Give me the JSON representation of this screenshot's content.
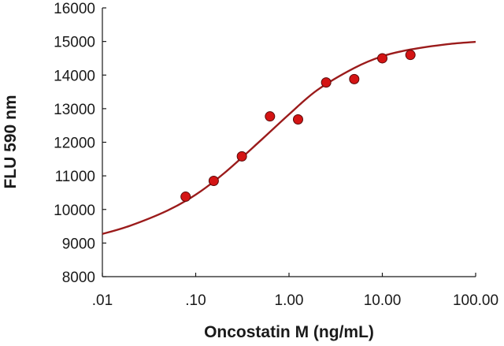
{
  "chart_data": {
    "type": "scatter",
    "xlabel": "Oncostatin M (ng/mL)",
    "ylabel": "FLU 590 nm",
    "x_scale": "log",
    "xlim": [
      0.01,
      100
    ],
    "ylim": [
      8000,
      16000
    ],
    "x_ticks": [
      {
        "value": 0.01,
        "label": ".01"
      },
      {
        "value": 0.1,
        "label": ".10"
      },
      {
        "value": 1,
        "label": "1.00"
      },
      {
        "value": 10,
        "label": "10.00"
      },
      {
        "value": 100,
        "label": "100.00"
      }
    ],
    "y_ticks": [
      8000,
      9000,
      10000,
      11000,
      12000,
      13000,
      14000,
      15000,
      16000
    ],
    "grid": false,
    "legend": "none",
    "series": [
      {
        "kind": "points",
        "color": "#d41414",
        "edge_color": "#5a0a0a",
        "points": [
          {
            "x": 0.078,
            "y": 10380
          },
          {
            "x": 0.156,
            "y": 10850
          },
          {
            "x": 0.3125,
            "y": 11580
          },
          {
            "x": 0.625,
            "y": 12770
          },
          {
            "x": 1.25,
            "y": 12680
          },
          {
            "x": 2.5,
            "y": 13780
          },
          {
            "x": 5,
            "y": 13880
          },
          {
            "x": 10,
            "y": 14500
          },
          {
            "x": 20,
            "y": 14600
          }
        ]
      },
      {
        "kind": "fit-curve",
        "color": "#9b1b1b",
        "x": [
          0.01,
          0.02,
          0.05,
          0.1,
          0.2,
          0.5,
          1,
          2,
          5,
          10,
          20,
          50,
          100
        ],
        "y": [
          9270,
          9520,
          9970,
          10440,
          11070,
          12060,
          12830,
          13550,
          14210,
          14560,
          14760,
          14920,
          14990
        ]
      }
    ]
  }
}
